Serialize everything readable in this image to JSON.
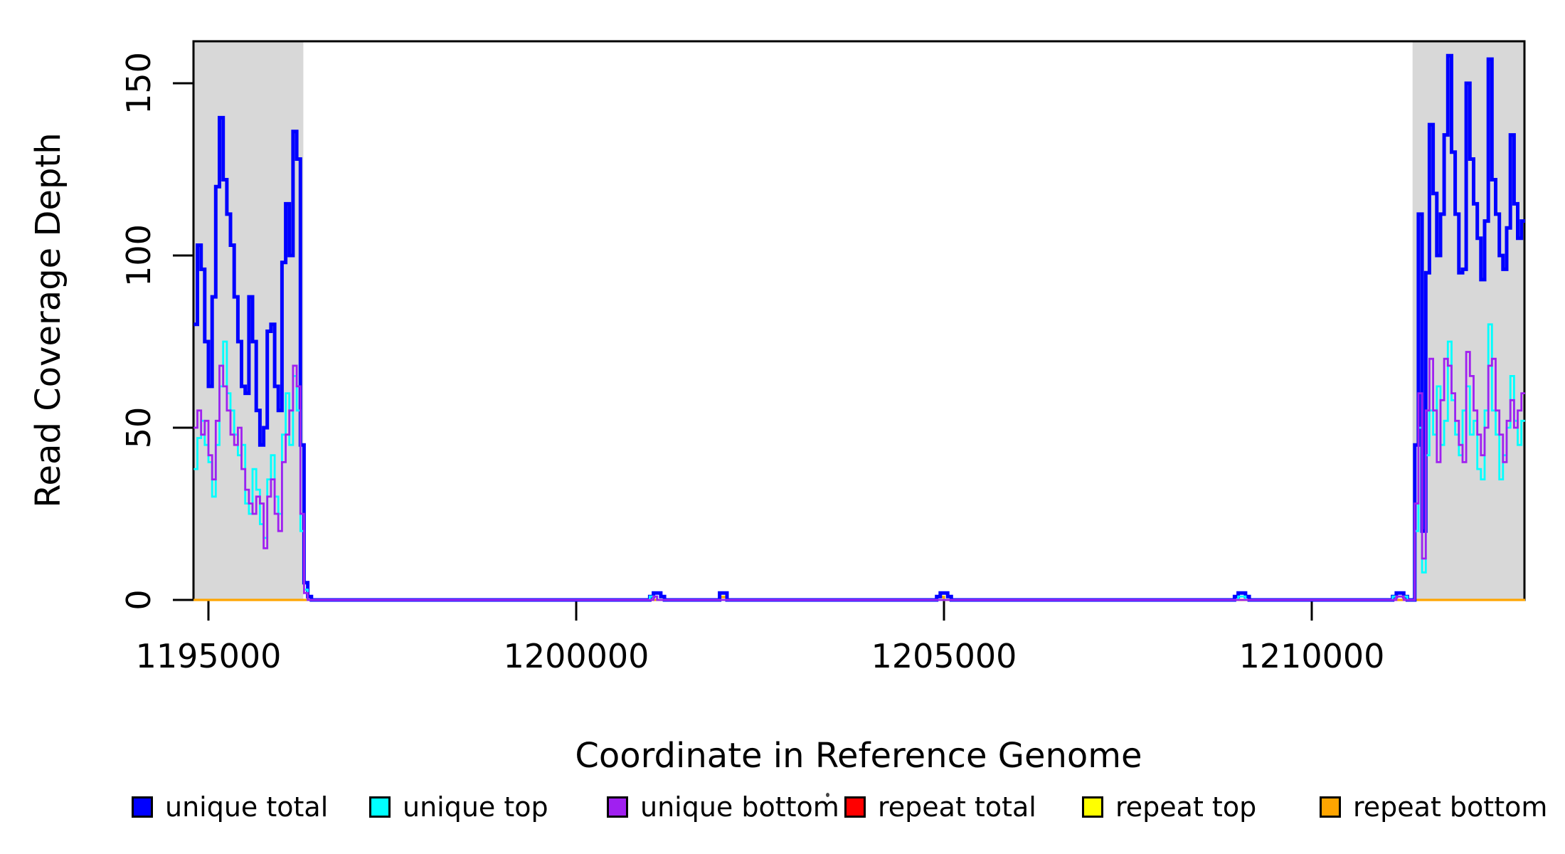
{
  "chart_data": {
    "type": "line",
    "mode": "step",
    "title": "",
    "xlabel": "Coordinate in Reference Genome",
    "ylabel": "Read Coverage Depth",
    "xlim": [
      1194800,
      1212900
    ],
    "ylim": [
      0,
      162
    ],
    "x_ticks": [
      1195000,
      1200000,
      1205000,
      1210000
    ],
    "y_ticks": [
      0,
      50,
      100,
      150
    ],
    "grid": false,
    "window_bp": 50,
    "shaded_regions": [
      {
        "start": 1194800,
        "end": 1196290,
        "color": "#D8D8D8"
      },
      {
        "start": 1211370,
        "end": 1212900,
        "color": "#D8D8D8"
      }
    ],
    "series": [
      {
        "name": "repeat total",
        "color": "#FF0000",
        "line_width": 3,
        "segments": []
      },
      {
        "name": "repeat top",
        "color": "#FFFF00",
        "line_width": 3,
        "segments": [
          {
            "start": 1201950,
            "step": 50,
            "values": [
              1,
              1
            ]
          },
          {
            "start": 1204900,
            "step": 50,
            "values": [
              1,
              1
            ]
          }
        ]
      },
      {
        "name": "repeat bottom",
        "color": "#FFA500",
        "line_width": 3.2,
        "segments": [
          {
            "start": 1201950,
            "step": 50,
            "values": [
              0.8,
              0.8
            ]
          },
          {
            "start": 1204900,
            "step": 50,
            "values": [
              0.8,
              0.8
            ]
          }
        ]
      },
      {
        "name": "unique total",
        "color": "#0000FF",
        "line_width": 5,
        "segments": [
          {
            "start": 1194800,
            "step": 50,
            "values": [
              80,
              103,
              96,
              75,
              62,
              88,
              120,
              140,
              122,
              112,
              103,
              88,
              75,
              62,
              60,
              88,
              75,
              55,
              45,
              50,
              78,
              80,
              62,
              55,
              98,
              115,
              100,
              136,
              128,
              45,
              5,
              1
            ]
          },
          {
            "start": 1201000,
            "step": 50,
            "values": [
              1,
              2,
              2,
              1
            ]
          },
          {
            "start": 1201950,
            "step": 50,
            "values": [
              2,
              2
            ]
          },
          {
            "start": 1204900,
            "step": 50,
            "values": [
              1,
              2,
              2,
              1
            ]
          },
          {
            "start": 1208950,
            "step": 50,
            "values": [
              1,
              2,
              2,
              1
            ]
          },
          {
            "start": 1211100,
            "step": 50,
            "values": [
              1,
              2,
              2,
              1
            ]
          },
          {
            "start": 1211350,
            "step": 50,
            "values": [
              0,
              45,
              112,
              20,
              95,
              138,
              118,
              100,
              112,
              135,
              158,
              130,
              112,
              95,
              96,
              150,
              128,
              115,
              105,
              93,
              110,
              157,
              122,
              112,
              100,
              96,
              108,
              135,
              115,
              105,
              110
            ]
          }
        ]
      },
      {
        "name": "unique top",
        "color": "#00FFFF",
        "line_width": 2.8,
        "segments": [
          {
            "start": 1194800,
            "step": 50,
            "values": [
              38,
              47,
              52,
              45,
              40,
              30,
              45,
              62,
              75,
              60,
              55,
              48,
              42,
              45,
              28,
              25,
              38,
              32,
              22,
              18,
              35,
              42,
              30,
              25,
              48,
              60,
              45,
              65,
              55,
              20,
              3,
              0
            ]
          },
          {
            "start": 1201000,
            "step": 50,
            "values": [
              1,
              1
            ]
          },
          {
            "start": 1208950,
            "step": 50,
            "values": [
              0,
              1,
              1,
              0
            ]
          },
          {
            "start": 1211100,
            "step": 50,
            "values": [
              1,
              1,
              1,
              1
            ]
          },
          {
            "start": 1211350,
            "step": 50,
            "values": [
              0,
              20,
              50,
              8,
              42,
              55,
              48,
              62,
              45,
              52,
              75,
              58,
              48,
              42,
              55,
              62,
              48,
              52,
              38,
              35,
              55,
              80,
              55,
              48,
              35,
              42,
              50,
              65,
              52,
              45,
              52
            ]
          }
        ]
      },
      {
        "name": "unique bottom",
        "color": "#A020F0",
        "line_width": 2.8,
        "segments": [
          {
            "start": 1194800,
            "step": 50,
            "values": [
              50,
              55,
              48,
              52,
              42,
              35,
              52,
              68,
              62,
              55,
              48,
              45,
              50,
              38,
              32,
              28,
              25,
              30,
              28,
              15,
              30,
              35,
              25,
              20,
              40,
              48,
              55,
              68,
              62,
              25,
              2,
              0
            ]
          },
          {
            "start": 1201050,
            "step": 50,
            "values": [
              1
            ]
          },
          {
            "start": 1211150,
            "step": 50,
            "values": [
              1,
              1
            ]
          },
          {
            "start": 1211350,
            "step": 50,
            "values": [
              0,
              28,
              60,
              12,
              55,
              70,
              55,
              40,
              58,
              70,
              68,
              60,
              52,
              45,
              40,
              72,
              65,
              55,
              48,
              42,
              50,
              68,
              70,
              55,
              48,
              40,
              52,
              58,
              50,
              55,
              60
            ]
          }
        ]
      }
    ]
  },
  "legend": {
    "items": [
      {
        "label": "unique total",
        "color": "#0000FF"
      },
      {
        "label": "unique top",
        "color": "#00FFFF"
      },
      {
        "label": "unique bottom",
        "color": "#A020F0"
      },
      {
        "label": "repeat total",
        "color": "#FF0000"
      },
      {
        "label": "repeat top",
        "color": "#FFFF00"
      },
      {
        "label": "repeat bottom",
        "color": "#FFA500"
      }
    ]
  }
}
